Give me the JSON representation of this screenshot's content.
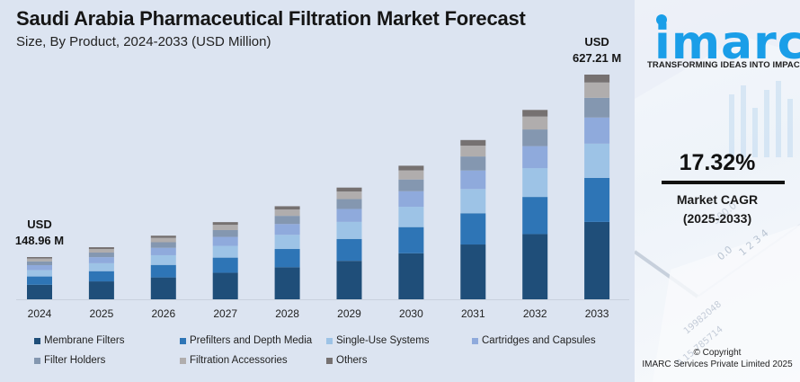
{
  "header": {
    "title": "Saudi Arabia Pharmaceutical Filtration Market Forecast",
    "subtitle": "Size, By Product, 2024-2033 (USD Million)"
  },
  "brand": {
    "logo_text": "imarc",
    "tagline": "TRANSFORMING IDEAS INTO IMPACT",
    "accent_color": "#1a9ee8"
  },
  "kpi": {
    "cagr_value": "17.32%",
    "cagr_label": "Market CAGR",
    "cagr_period": "(2025-2033)"
  },
  "footer": {
    "copyright_line1": "© Copyright",
    "copyright_line2": "IMARC Services Private Limited 2025"
  },
  "chart_data": {
    "type": "bar",
    "stacked": true,
    "title": "Saudi Arabia Pharmaceutical Filtration Market Forecast",
    "subtitle": "Size, By Product, 2024-2033 (USD Million)",
    "xlabel": "",
    "ylabel": "",
    "grid": false,
    "legend_position": "bottom",
    "categories": [
      "2024",
      "2025",
      "2026",
      "2027",
      "2028",
      "2029",
      "2030",
      "2031",
      "2032",
      "2033"
    ],
    "totals": [
      148.96,
      174.76,
      205.02,
      240.53,
      282.19,
      331.07,
      388.4,
      455.67,
      534.6,
      627.21
    ],
    "annotations": [
      {
        "category": "2024",
        "line1": "USD",
        "line2": "148.96 M"
      },
      {
        "category": "2033",
        "line1": "USD",
        "line2": "627.21 M"
      }
    ],
    "series": [
      {
        "name": "Membrane Filters",
        "color": "#1f4e79",
        "values": [
          51.2,
          60.1,
          70.5,
          82.7,
          97.1,
          113.9,
          133.6,
          156.7,
          183.9,
          215.8
        ]
      },
      {
        "name": "Prefilters and Depth Media",
        "color": "#2e75b6",
        "values": [
          29.2,
          34.3,
          40.2,
          47.1,
          55.3,
          64.9,
          76.1,
          89.3,
          104.8,
          122.9
        ]
      },
      {
        "name": "Single-Use Systems",
        "color": "#9dc3e6",
        "values": [
          22.6,
          26.6,
          31.2,
          36.6,
          42.9,
          50.3,
          59.0,
          69.3,
          81.3,
          95.3
        ]
      },
      {
        "name": "Cartridges and Capsules",
        "color": "#8faadc",
        "values": [
          17.3,
          20.3,
          23.8,
          27.9,
          32.7,
          38.4,
          45.1,
          52.9,
          62.0,
          72.8
        ]
      },
      {
        "name": "Filter Holders",
        "color": "#8497b0",
        "values": [
          13.1,
          15.4,
          18.0,
          21.2,
          24.8,
          29.1,
          34.2,
          40.1,
          47.0,
          55.2
        ]
      },
      {
        "name": "Filtration Accessories",
        "color": "#b0adad",
        "values": [
          10.1,
          11.9,
          13.9,
          16.4,
          19.2,
          22.5,
          26.4,
          31.0,
          36.4,
          42.6
        ]
      },
      {
        "name": "Others",
        "color": "#767171",
        "values": [
          5.2,
          6.1,
          7.2,
          8.4,
          9.9,
          11.6,
          13.6,
          16.0,
          18.7,
          22.0
        ]
      }
    ]
  }
}
